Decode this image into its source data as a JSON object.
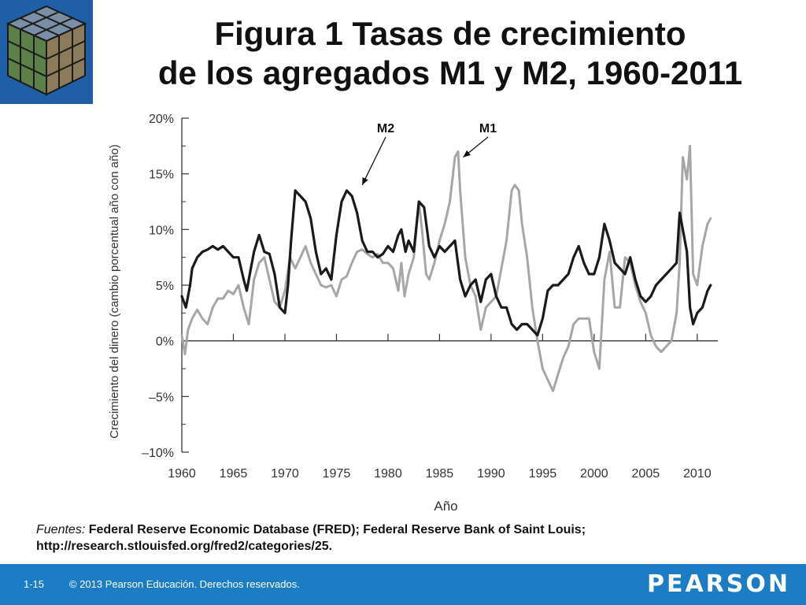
{
  "header": {
    "title_line1": "Figura 1 Tasas de crecimiento",
    "title_line2": "de los agregados M1 y M2, 1960-2011"
  },
  "chart_data": {
    "type": "line",
    "title": "",
    "xlabel": "Año",
    "ylabel": "Crecimiento del dinero (cambio porcentual año con año)",
    "xlim": [
      1960,
      2012
    ],
    "ylim": [
      -10,
      20
    ],
    "x_ticks": [
      1960,
      1965,
      1970,
      1975,
      1980,
      1985,
      1990,
      1995,
      2000,
      2005,
      2010
    ],
    "y_ticks": [
      -10,
      -5,
      0,
      5,
      10,
      15,
      20
    ],
    "y_tick_labels": [
      "–10%",
      "–5%",
      "0%",
      "5%",
      "10%",
      "15%",
      "20%"
    ],
    "grid": false,
    "legend": "annotations",
    "annotations": [
      {
        "text": "M2",
        "points_to_series": "M2",
        "target": [
          1977.5,
          14.0
        ]
      },
      {
        "text": "M1",
        "points_to_series": "M1",
        "target": [
          1987.3,
          16.5
        ]
      }
    ],
    "series": [
      {
        "name": "M1",
        "color": "#a6a6a6",
        "x": [
          1960,
          1960.3,
          1960.6,
          1961,
          1961.5,
          1962,
          1962.5,
          1963,
          1963.5,
          1964,
          1964.5,
          1965,
          1965.5,
          1966,
          1966.5,
          1967,
          1967.5,
          1968,
          1968.5,
          1969,
          1969.5,
          1970,
          1970.5,
          1971,
          1971.5,
          1972,
          1972.5,
          1973,
          1973.5,
          1974,
          1974.5,
          1975,
          1975.5,
          1976,
          1976.5,
          1977,
          1977.5,
          1978,
          1978.5,
          1979,
          1979.5,
          1980,
          1980.5,
          1981,
          1981.3,
          1981.6,
          1982,
          1982.5,
          1983,
          1983.3,
          1983.7,
          1984,
          1984.5,
          1985,
          1985.5,
          1986,
          1986.5,
          1986.8,
          1987,
          1987.5,
          1988,
          1988.5,
          1989,
          1989.5,
          1990,
          1990.5,
          1991,
          1991.5,
          1992,
          1992.3,
          1992.7,
          1993,
          1993.5,
          1994,
          1994.5,
          1995,
          1995.5,
          1996,
          1996.5,
          1997,
          1997.5,
          1998,
          1998.5,
          1999,
          1999.5,
          2000,
          2000.5,
          2001,
          2001.5,
          2002,
          2002.5,
          2003,
          2003.5,
          2004,
          2004.5,
          2005,
          2005.5,
          2006,
          2006.5,
          2007,
          2007.5,
          2008,
          2008.3,
          2008.6,
          2009,
          2009.3,
          2009.6,
          2010,
          2010.5,
          2011,
          2011.3
        ],
        "y": [
          0.5,
          -1.2,
          1.0,
          2.0,
          2.8,
          2.0,
          1.5,
          3.0,
          3.8,
          3.8,
          4.5,
          4.2,
          5.0,
          3.0,
          1.5,
          5.5,
          7.0,
          7.5,
          5.5,
          3.5,
          3.0,
          4.5,
          7.5,
          6.5,
          7.5,
          8.5,
          7.0,
          6.0,
          5.0,
          4.8,
          5.0,
          4.0,
          5.5,
          5.8,
          7.0,
          8.0,
          8.2,
          7.8,
          7.5,
          7.8,
          7.0,
          7.0,
          6.5,
          4.5,
          7.0,
          4.0,
          6.0,
          7.5,
          12.5,
          10.0,
          6.0,
          5.5,
          7.0,
          9.0,
          10.5,
          12.5,
          16.5,
          17.0,
          13.5,
          7.5,
          5.0,
          4.0,
          1.0,
          3.0,
          3.5,
          4.0,
          6.5,
          9.0,
          13.5,
          14.0,
          13.5,
          10.5,
          7.5,
          3.0,
          0.0,
          -2.5,
          -3.5,
          -4.5,
          -3.0,
          -1.5,
          -0.5,
          1.5,
          2.0,
          2.0,
          2.0,
          -1.0,
          -2.5,
          5.5,
          8.0,
          3.0,
          3.0,
          7.5,
          7.0,
          5.0,
          3.5,
          2.5,
          0.5,
          -0.5,
          -1.0,
          -0.5,
          0.0,
          2.5,
          7.0,
          16.5,
          14.5,
          17.5,
          6.0,
          5.0,
          8.5,
          10.5,
          11.0
        ]
      },
      {
        "name": "M2",
        "color": "#1a1a1a",
        "x": [
          1960,
          1960.4,
          1960.8,
          1961,
          1961.5,
          1962,
          1962.5,
          1963,
          1963.5,
          1964,
          1964.5,
          1965,
          1965.5,
          1966,
          1966.3,
          1966.7,
          1967,
          1967.5,
          1968,
          1968.5,
          1969,
          1969.5,
          1970,
          1970.3,
          1970.6,
          1971,
          1971.5,
          1972,
          1972.5,
          1973,
          1973.5,
          1974,
          1974.5,
          1975,
          1975.5,
          1976,
          1976.5,
          1977,
          1977.5,
          1978,
          1978.5,
          1979,
          1979.5,
          1980,
          1980.5,
          1981,
          1981.3,
          1981.7,
          1982,
          1982.5,
          1983,
          1983.5,
          1984,
          1984.5,
          1985,
          1985.5,
          1986,
          1986.5,
          1987,
          1987.5,
          1988,
          1988.5,
          1989,
          1989.5,
          1990,
          1990.5,
          1991,
          1991.5,
          1992,
          1992.5,
          1993,
          1993.5,
          1994,
          1994.5,
          1995,
          1995.5,
          1996,
          1996.5,
          1997,
          1997.5,
          1998,
          1998.5,
          1999,
          1999.5,
          2000,
          2000.5,
          2001,
          2001.5,
          2002,
          2002.5,
          2003,
          2003.5,
          2004,
          2004.5,
          2005,
          2005.5,
          2006,
          2006.5,
          2007,
          2007.5,
          2008,
          2008.3,
          2008.6,
          2009,
          2009.3,
          2009.6,
          2010,
          2010.5,
          2011,
          2011.3
        ],
        "y": [
          4.0,
          3.0,
          5.0,
          6.5,
          7.5,
          8.0,
          8.2,
          8.5,
          8.2,
          8.5,
          8.0,
          7.5,
          7.5,
          5.5,
          4.5,
          6.5,
          8.0,
          9.5,
          8.0,
          7.8,
          6.0,
          3.0,
          2.5,
          5.0,
          9.0,
          13.5,
          13.0,
          12.5,
          11.0,
          8.0,
          6.0,
          6.5,
          5.5,
          9.5,
          12.5,
          13.5,
          13.0,
          11.5,
          9.0,
          8.0,
          8.0,
          7.5,
          7.8,
          8.5,
          8.0,
          9.5,
          10.0,
          8.0,
          9.0,
          8.0,
          12.5,
          12.0,
          8.5,
          7.5,
          8.5,
          8.0,
          8.5,
          9.0,
          5.5,
          4.0,
          5.0,
          5.5,
          3.5,
          5.5,
          6.0,
          4.0,
          3.0,
          3.0,
          1.5,
          1.0,
          1.5,
          1.5,
          1.0,
          0.5,
          2.0,
          4.5,
          5.0,
          5.0,
          5.5,
          6.0,
          7.5,
          8.5,
          7.0,
          6.0,
          6.0,
          7.5,
          10.5,
          9.0,
          7.0,
          6.5,
          6.0,
          7.5,
          5.5,
          4.0,
          3.5,
          4.0,
          5.0,
          5.5,
          6.0,
          6.5,
          7.0,
          11.5,
          10.0,
          8.0,
          3.0,
          1.5,
          2.5,
          3.0,
          4.5,
          5.0
        ]
      }
    ]
  },
  "sources": {
    "label": "Fuentes:",
    "text": "Federal Reserve Economic Database (FRED); Federal Reserve Bank of Saint Louis; http://research.stlouisfed.org/fred2/categories/25."
  },
  "footer": {
    "slide_number": "1-15",
    "copyright": "© 2013 Pearson Educación. Derechos reservados.",
    "brand": "PEARSON",
    "background": "#1c7dc4"
  },
  "logo": {
    "icon": "rubiks-cube-icon"
  }
}
